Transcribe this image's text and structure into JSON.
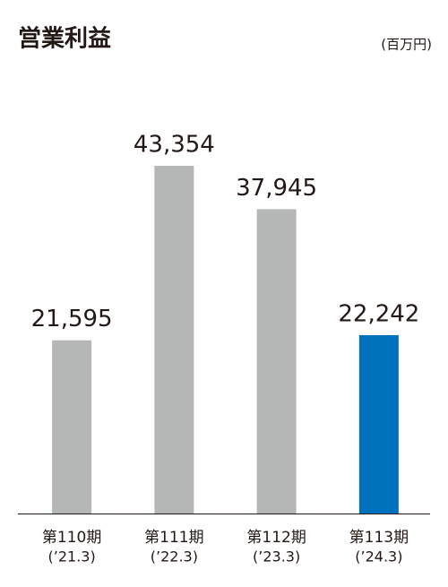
{
  "chart_data": {
    "type": "bar",
    "title": "営業利益",
    "unit": "(百万円)",
    "categories": [
      "第110期",
      "第111期",
      "第112期",
      "第113期"
    ],
    "periods": [
      "(’21.3)",
      "(’22.3)",
      "(’23.3)",
      "(’24.3)"
    ],
    "values": [
      21595,
      43354,
      37945,
      22242
    ],
    "value_labels": [
      "21,595",
      "43,354",
      "37,945",
      "22,242"
    ],
    "colors": [
      "#b5b6b6",
      "#b5b6b6",
      "#b5b6b6",
      "#0071bc"
    ]
  }
}
